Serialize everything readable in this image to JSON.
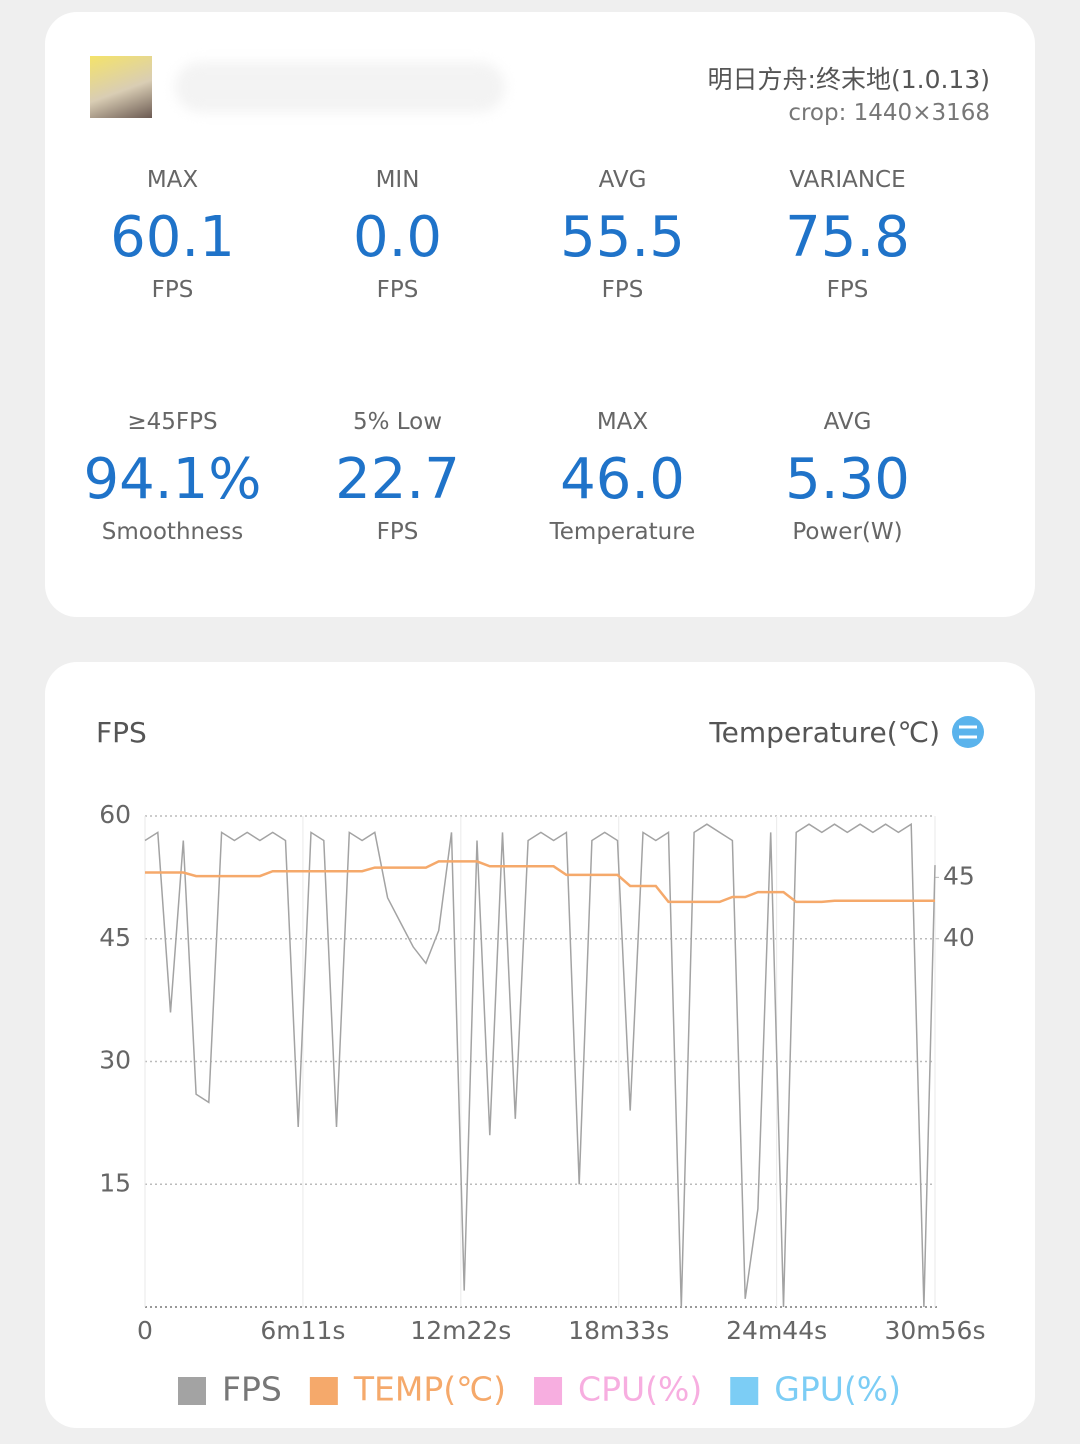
{
  "header": {
    "game": "明日方舟:终末地(1.0.13)",
    "crop": "crop: 1440×3168"
  },
  "stats": [
    {
      "label": "MAX",
      "value": "60.1",
      "unit": "FPS"
    },
    {
      "label": "MIN",
      "value": "0.0",
      "unit": "FPS"
    },
    {
      "label": "AVG",
      "value": "55.5",
      "unit": "FPS"
    },
    {
      "label": "VARIANCE",
      "value": "75.8",
      "unit": "FPS"
    },
    {
      "label": "≥45FPS",
      "value": "94.1%",
      "unit": "Smoothness"
    },
    {
      "label": "5% Low",
      "value": "22.7",
      "unit": "FPS"
    },
    {
      "label": "MAX",
      "value": "46.0",
      "unit": "Temperature"
    },
    {
      "label": "AVG",
      "value": "5.30",
      "unit": "Power(W)"
    }
  ],
  "chart_data": {
    "type": "line",
    "y_label": "FPS",
    "y2_label": "Temperature(℃)",
    "x": [
      0,
      30,
      60,
      90,
      120,
      150,
      180,
      210,
      240,
      270,
      300,
      330,
      360,
      390,
      420,
      450,
      480,
      510,
      540,
      570,
      600,
      630,
      660,
      690,
      720,
      750,
      780,
      810,
      840,
      870,
      900,
      930,
      960,
      990,
      1020,
      1050,
      1080,
      1110,
      1140,
      1170,
      1200,
      1230,
      1260,
      1290,
      1320,
      1350,
      1380,
      1410,
      1440,
      1470,
      1500,
      1530,
      1560,
      1590,
      1620,
      1650,
      1680,
      1710,
      1740,
      1770,
      1800,
      1830,
      1856
    ],
    "xlim": [
      0,
      1856
    ],
    "xticks": [
      {
        "value": 0,
        "label": "0"
      },
      {
        "value": 371,
        "label": "6m11s"
      },
      {
        "value": 742,
        "label": "12m22s"
      },
      {
        "value": 1113,
        "label": "18m33s"
      },
      {
        "value": 1484,
        "label": "24m44s"
      },
      {
        "value": 1856,
        "label": "30m56s"
      }
    ],
    "ylim": [
      0,
      60
    ],
    "yticks": [
      15,
      30,
      45,
      60
    ],
    "y2lim": [
      10,
      50
    ],
    "y2ticks": [
      40,
      45
    ],
    "grid": true,
    "series": [
      {
        "name": "FPS",
        "color": "#a3a3a3",
        "values": [
          57,
          58,
          36,
          57,
          26,
          25,
          58,
          57,
          58,
          57,
          58,
          57,
          22,
          58,
          57,
          22,
          58,
          57,
          58,
          50,
          47,
          44,
          42,
          46,
          58,
          2,
          57,
          21,
          58,
          23,
          57,
          58,
          57,
          58,
          15,
          57,
          58,
          57,
          24,
          58,
          57,
          58,
          0,
          58,
          59,
          58,
          57,
          1,
          12,
          58,
          0,
          58,
          59,
          58,
          59,
          58,
          59,
          58,
          59,
          58,
          59,
          0,
          54
        ]
      },
      {
        "name": "TEMP(℃)",
        "color": "#f5a96b",
        "axis": "y2",
        "values": [
          45.4,
          45.4,
          45.4,
          45.4,
          45.1,
          45.1,
          45.1,
          45.1,
          45.1,
          45.1,
          45.5,
          45.5,
          45.5,
          45.5,
          45.5,
          45.5,
          45.5,
          45.5,
          45.8,
          45.8,
          45.8,
          45.8,
          45.8,
          46.3,
          46.3,
          46.3,
          46.3,
          45.9,
          45.9,
          45.9,
          45.9,
          45.9,
          45.9,
          45.2,
          45.2,
          45.2,
          45.2,
          45.2,
          44.3,
          44.3,
          44.3,
          43.0,
          43.0,
          43.0,
          43.0,
          43.0,
          43.4,
          43.4,
          43.8,
          43.8,
          43.8,
          43.0,
          43.0,
          43.0,
          43.1,
          43.1,
          43.1,
          43.1,
          43.1,
          43.1,
          43.1,
          43.1,
          43.1
        ]
      },
      {
        "name": "CPU(%)",
        "color": "#f7aee0",
        "values": [
          null,
          null,
          null,
          null,
          null,
          null,
          null,
          null,
          null,
          null,
          null,
          null,
          null,
          null,
          null,
          null,
          null,
          null,
          null,
          null,
          null,
          null,
          null,
          null,
          null,
          null,
          null,
          null,
          null,
          null,
          null,
          null,
          null,
          null,
          null,
          null,
          null,
          null,
          null,
          null,
          null,
          null,
          null,
          null,
          null,
          null,
          null,
          null,
          null,
          null,
          null,
          null,
          null,
          null,
          null,
          null,
          null,
          null,
          null,
          null,
          null,
          null,
          null
        ]
      },
      {
        "name": "GPU(%)",
        "color": "#7ccdf5",
        "values": [
          null,
          null,
          null,
          null,
          null,
          null,
          null,
          null,
          null,
          null,
          null,
          null,
          null,
          null,
          null,
          null,
          null,
          null,
          null,
          null,
          null,
          null,
          null,
          null,
          null,
          null,
          null,
          null,
          null,
          null,
          null,
          null,
          null,
          null,
          null,
          null,
          null,
          null,
          null,
          null,
          null,
          null,
          null,
          null,
          null,
          null,
          null,
          null,
          null,
          null,
          null,
          null,
          null,
          null,
          null,
          null,
          null,
          null,
          null,
          null,
          null,
          null,
          null
        ]
      }
    ]
  }
}
